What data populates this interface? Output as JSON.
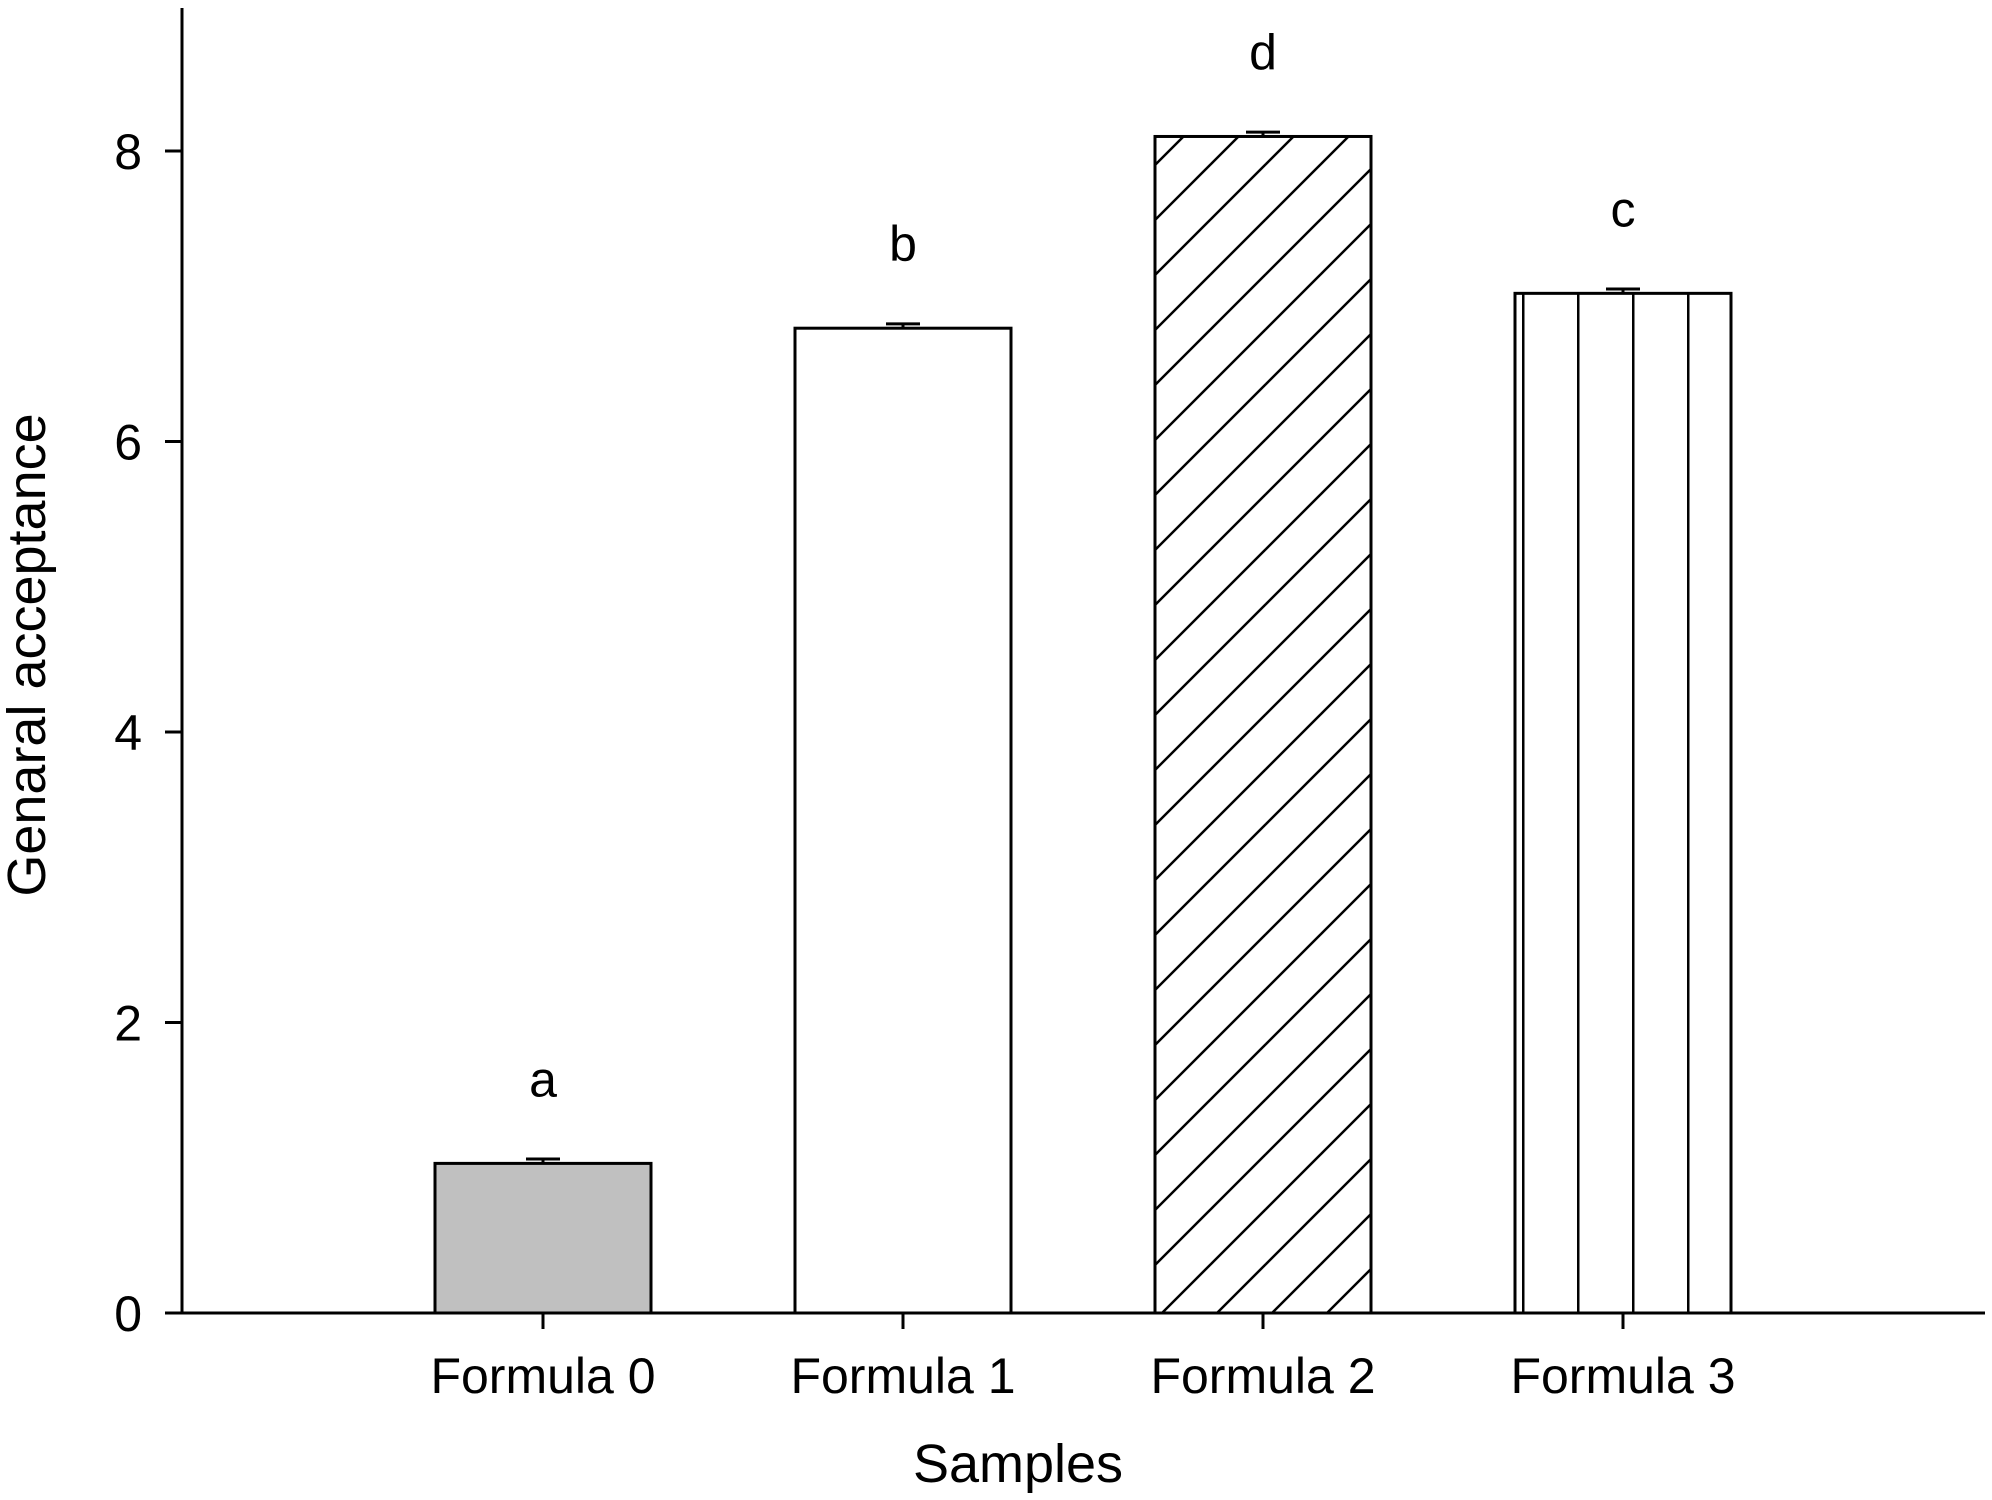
{
  "chart_data": {
    "type": "bar",
    "title": "",
    "xlabel": "Samples",
    "ylabel": "Genaral acceptance",
    "categories": [
      "Formula 0",
      "Formula 1",
      "Formula 2",
      "Formula 3"
    ],
    "values": [
      1.03,
      6.78,
      8.1,
      7.02
    ],
    "errors": [
      0.03,
      0.03,
      0.03,
      0.03
    ],
    "significance_labels": [
      "a",
      "b",
      "d",
      "c"
    ],
    "fill_patterns": [
      "solid-gray",
      "none",
      "diagonal-hatch",
      "vertical-lines"
    ],
    "ylim": [
      0,
      8.9
    ],
    "yticks": [
      0,
      2,
      4,
      6,
      8
    ],
    "ytick_labels": [
      "0",
      "2",
      "4",
      "6",
      "8"
    ],
    "grid": false,
    "legend": "none",
    "colors": {
      "bar_gray": "#c0c0c0",
      "bar_edge": "#000000",
      "background": "#ffffff"
    }
  }
}
